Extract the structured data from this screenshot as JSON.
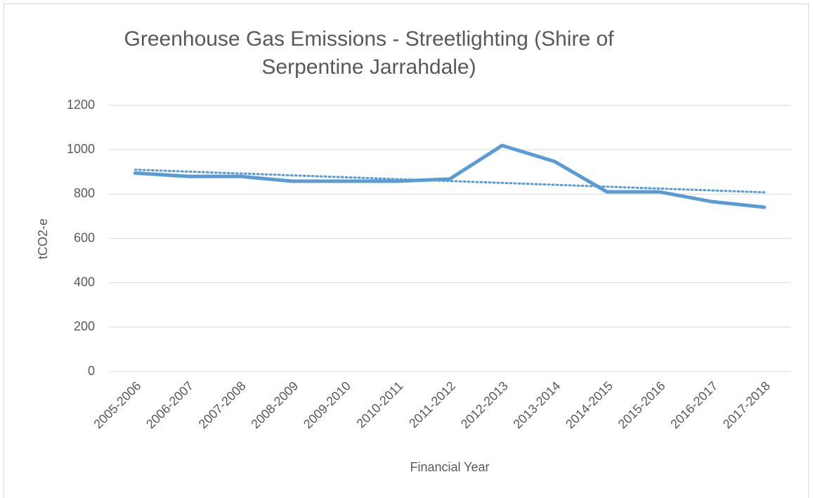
{
  "chart_data": {
    "type": "line",
    "title": "Greenhouse Gas Emissions - Streetlighting (Shire of Serpentine Jarrahdale)",
    "x_label": "Financial Year",
    "y_label": "tCO2-e",
    "categories": [
      "2005-2006",
      "2006-2007",
      "2007-2008",
      "2008-2009",
      "2009-2010",
      "2010-2011",
      "2011-2012",
      "2012-2013",
      "2013-2014",
      "2014-2015",
      "2015-2016",
      "2016-2017",
      "2017-2018"
    ],
    "values": [
      895,
      880,
      880,
      858,
      858,
      858,
      868,
      1019,
      947,
      810,
      810,
      766,
      741
    ],
    "color": "#5b9bd5",
    "trend_values": [
      910,
      808
    ],
    "ylim": [
      0,
      1200
    ],
    "yticks": [
      0,
      200,
      400,
      600,
      800,
      1000,
      1200
    ],
    "grid": true
  }
}
